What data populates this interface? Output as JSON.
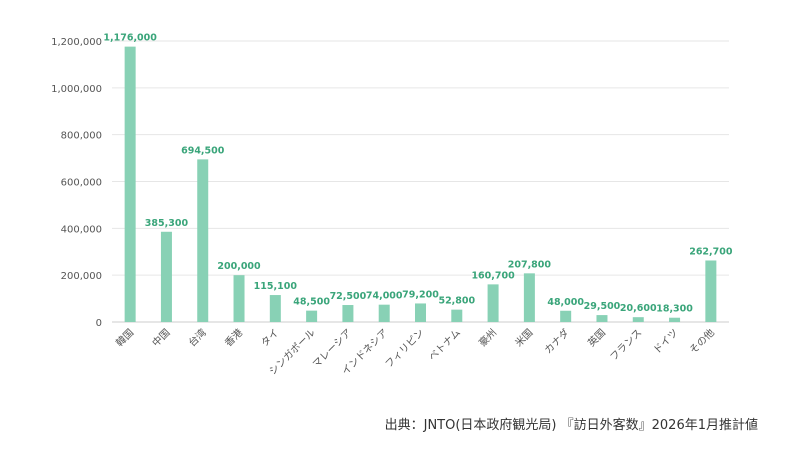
{
  "chart_data": {
    "type": "bar",
    "title": "",
    "xlabel": "",
    "ylabel": "",
    "ylim": [
      0,
      1200000
    ],
    "yticks": [
      0,
      200000,
      400000,
      600000,
      800000,
      1000000,
      1200000
    ],
    "ytick_labels": [
      "0",
      "200,000",
      "400,000",
      "600,000",
      "800,000",
      "1,000,000",
      "1,200,000"
    ],
    "grid": true,
    "categories": [
      "韓国",
      "中国",
      "台湾",
      "香港",
      "タイ",
      "シンガポール",
      "マレーシア",
      "インドネシア",
      "フィリピン",
      "ベトナム",
      "豪州",
      "米国",
      "カナダ",
      "英国",
      "フランス",
      "ドイツ",
      "その他"
    ],
    "values": [
      1176000,
      385300,
      694500,
      200000,
      115100,
      48500,
      72500,
      74000,
      79200,
      52800,
      160700,
      207800,
      48000,
      29500,
      20600,
      18300,
      262700
    ],
    "value_labels": [
      "1,176,000",
      "385,300",
      "694,500",
      "200,000",
      "115,100",
      "48,500",
      "72,500",
      "74,000",
      "79,200",
      "52,800",
      "160,700",
      "207,800",
      "48,000",
      "29,500",
      "20,600",
      "18,300",
      "262,700"
    ],
    "colors": {
      "bar": "#88d1b5",
      "label": "#3aa57a",
      "grid": "#e6e6e6",
      "axis": "#cccccc"
    }
  },
  "source": "出典：JNTO(日本政府観光局) 『訪日外客数』2026年1月推計値"
}
